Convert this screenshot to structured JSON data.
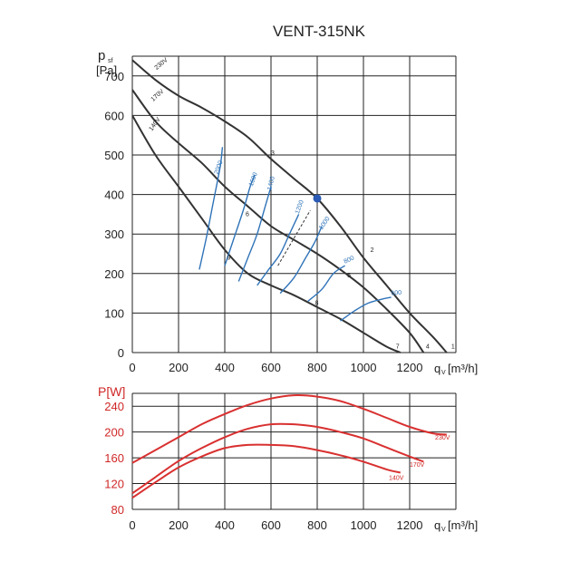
{
  "title": "VENT-315NK",
  "top": {
    "ylabel_main": "p",
    "ylabel_sub": "sf",
    "yunit": "[Pa]",
    "xlabel_main": "q",
    "xlabel_sub": "V",
    "xunit": "[m³/h]",
    "xlim": [
      0,
      1400
    ],
    "ylim": [
      0,
      750
    ],
    "x_ticks": [
      "0",
      "200",
      "400",
      "600",
      "800",
      "1000",
      "1200"
    ],
    "y_ticks": [
      "0",
      "100",
      "200",
      "300",
      "400",
      "500",
      "600",
      "700"
    ],
    "speed_labels": [
      "230V",
      "170V",
      "140V"
    ],
    "rpm_labels": [
      "2000",
      "1600",
      "1400",
      "1200",
      "1000",
      "800",
      "600"
    ],
    "point_labels": [
      "1",
      "2",
      "3",
      "4",
      "5",
      "6",
      "7",
      "8",
      "9"
    ]
  },
  "bottom": {
    "ylabel": "P[W]",
    "xlabel_main": "q",
    "xlabel_sub": "V",
    "xunit": "[m³/h]",
    "xlim": [
      0,
      1400
    ],
    "ylim": [
      80,
      260
    ],
    "x_ticks": [
      "0",
      "200",
      "400",
      "600",
      "800",
      "1000",
      "1200"
    ],
    "y_ticks": [
      "80",
      "120",
      "160",
      "200",
      "240"
    ],
    "speed_labels": [
      "230V",
      "170V",
      "140V"
    ]
  },
  "chart_data": [
    {
      "type": "line",
      "title": "VENT-315NK",
      "xlabel": "qV[m³/h]",
      "ylabel": "psf [Pa]",
      "xlim": [
        0,
        1400
      ],
      "ylim": [
        0,
        750
      ],
      "grid": true,
      "series": [
        {
          "name": "230V",
          "x": [
            0,
            100,
            200,
            300,
            400,
            500,
            600,
            700,
            800,
            900,
            1000,
            1100,
            1200,
            1300,
            1360
          ],
          "y": [
            740,
            690,
            650,
            620,
            585,
            545,
            490,
            440,
            390,
            320,
            240,
            170,
            100,
            40,
            0
          ]
        },
        {
          "name": "170V",
          "x": [
            0,
            100,
            200,
            300,
            400,
            500,
            600,
            700,
            800,
            900,
            1000,
            1100,
            1200,
            1260
          ],
          "y": [
            665,
            585,
            530,
            480,
            420,
            370,
            320,
            285,
            250,
            210,
            165,
            110,
            50,
            0
          ]
        },
        {
          "name": "140V",
          "x": [
            0,
            100,
            200,
            300,
            400,
            500,
            600,
            700,
            800,
            900,
            1000,
            1100,
            1160
          ],
          "y": [
            600,
            500,
            420,
            340,
            260,
            200,
            170,
            145,
            115,
            85,
            50,
            15,
            0
          ]
        }
      ],
      "rpm_curves": [
        {
          "label": "2000",
          "x": [
            290,
            320,
            350,
            380,
            390
          ],
          "y": [
            210,
            290,
            380,
            470,
            520
          ]
        },
        {
          "label": "1600",
          "x": [
            400,
            440,
            480,
            510,
            530
          ],
          "y": [
            220,
            290,
            360,
            420,
            450
          ]
        },
        {
          "label": "1400",
          "x": [
            460,
            500,
            540,
            580,
            600
          ],
          "y": [
            180,
            240,
            300,
            380,
            420
          ]
        },
        {
          "label": "1200",
          "x": [
            540,
            590,
            640,
            680,
            720
          ],
          "y": [
            170,
            210,
            250,
            300,
            350
          ]
        },
        {
          "label": "1000",
          "x": [
            640,
            700,
            750,
            790,
            820
          ],
          "y": [
            150,
            190,
            240,
            280,
            320
          ]
        },
        {
          "label": "800",
          "x": [
            760,
            820,
            870,
            920
          ],
          "y": [
            130,
            160,
            200,
            220
          ]
        },
        {
          "label": "600",
          "x": [
            900,
            960,
            1020,
            1080,
            1120
          ],
          "y": [
            80,
            105,
            125,
            135,
            140
          ]
        }
      ],
      "operating_point": {
        "x": 800,
        "y": 390
      }
    },
    {
      "type": "line",
      "xlabel": "qV[m³/h]",
      "ylabel": "P[W]",
      "xlim": [
        0,
        1400
      ],
      "ylim": [
        80,
        260
      ],
      "grid": true,
      "series": [
        {
          "name": "230V",
          "x": [
            0,
            100,
            200,
            300,
            400,
            500,
            600,
            700,
            800,
            900,
            1000,
            1100,
            1200,
            1300,
            1360
          ],
          "y": [
            152,
            172,
            192,
            212,
            228,
            242,
            252,
            257,
            255,
            248,
            236,
            222,
            208,
            198,
            196
          ]
        },
        {
          "name": "170V",
          "x": [
            0,
            100,
            200,
            300,
            400,
            500,
            600,
            700,
            800,
            900,
            1000,
            1100,
            1200,
            1260
          ],
          "y": [
            105,
            130,
            155,
            175,
            192,
            205,
            212,
            212,
            208,
            200,
            190,
            176,
            162,
            154
          ]
        },
        {
          "name": "140V",
          "x": [
            0,
            100,
            200,
            300,
            400,
            500,
            600,
            700,
            800,
            900,
            1000,
            1100,
            1160
          ],
          "y": [
            98,
            122,
            145,
            162,
            175,
            180,
            180,
            178,
            172,
            164,
            154,
            142,
            137
          ]
        }
      ]
    }
  ]
}
